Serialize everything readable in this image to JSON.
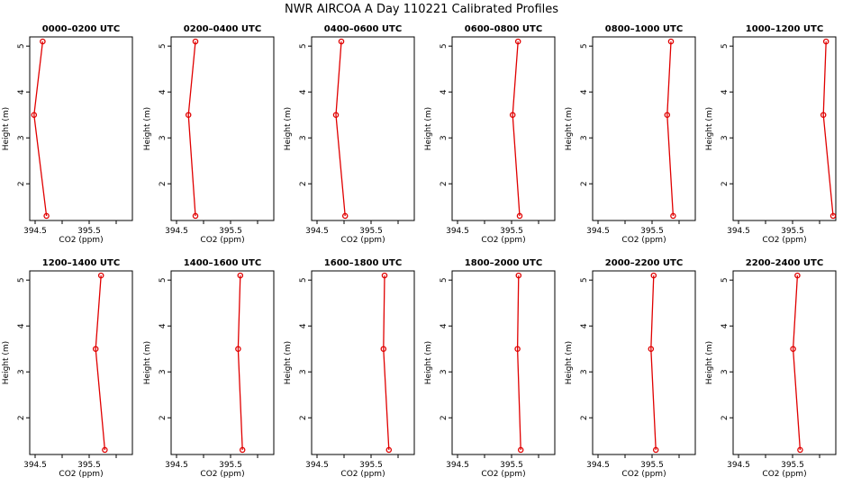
{
  "title": "NWR AIRCOA A  Day 110221  Calibrated Profiles",
  "colors": {
    "line": "#e00000",
    "axis": "#000000",
    "background": "#ffffff"
  },
  "shared_axes": {
    "xlabel": "CO2 (ppm)",
    "ylabel": "Height (m)",
    "y_ticks": [
      "2",
      "3",
      "4",
      "5"
    ],
    "y_tick_values": [
      2,
      3,
      4,
      5
    ]
  },
  "chart_data": [
    {
      "type": "line",
      "title": "0000–0200 UTC",
      "xlim": [
        394.4,
        396.3
      ],
      "x_ticks": [
        394.5,
        395.5
      ],
      "x_tick_labels": [
        "394.5",
        "395.5"
      ],
      "ylim": [
        1.2,
        5.2
      ],
      "x": [
        394.64,
        394.48,
        394.71
      ],
      "y": [
        5.1,
        3.5,
        1.3
      ]
    },
    {
      "type": "line",
      "title": "0200–0400 UTC",
      "xlim": [
        394.4,
        396.3
      ],
      "x_ticks": [
        394.5,
        395.5
      ],
      "x_tick_labels": [
        "394.5",
        "395.5"
      ],
      "ylim": [
        1.2,
        5.2
      ],
      "x": [
        394.85,
        394.72,
        394.85
      ],
      "y": [
        5.1,
        3.5,
        1.3
      ]
    },
    {
      "type": "line",
      "title": "0400–0600 UTC",
      "xlim": [
        394.4,
        396.3
      ],
      "x_ticks": [
        394.5,
        395.5
      ],
      "x_tick_labels": [
        "394.5",
        "395.5"
      ],
      "ylim": [
        1.2,
        5.2
      ],
      "x": [
        394.95,
        394.85,
        395.02
      ],
      "y": [
        5.1,
        3.5,
        1.3
      ]
    },
    {
      "type": "line",
      "title": "0600–0800 UTC",
      "xlim": [
        394.4,
        396.3
      ],
      "x_ticks": [
        394.5,
        395.5
      ],
      "x_tick_labels": [
        "394.5",
        "395.5"
      ],
      "ylim": [
        1.2,
        5.2
      ],
      "x": [
        395.62,
        395.52,
        395.65
      ],
      "y": [
        5.1,
        3.5,
        1.3
      ]
    },
    {
      "type": "line",
      "title": "0800–1000 UTC",
      "xlim": [
        394.4,
        396.3
      ],
      "x_ticks": [
        394.5,
        395.5
      ],
      "x_tick_labels": [
        "394.5",
        "395.5"
      ],
      "ylim": [
        1.2,
        5.2
      ],
      "x": [
        395.85,
        395.78,
        395.89
      ],
      "y": [
        5.1,
        3.5,
        1.3
      ]
    },
    {
      "type": "line",
      "title": "1000–1200 UTC",
      "xlim": [
        394.4,
        396.3
      ],
      "x_ticks": [
        394.5,
        395.5
      ],
      "x_tick_labels": [
        "394.5",
        "395.5"
      ],
      "ylim": [
        1.2,
        5.2
      ],
      "x": [
        396.12,
        396.07,
        396.25
      ],
      "y": [
        5.1,
        3.5,
        1.3
      ]
    },
    {
      "type": "line",
      "title": "1200–1400 UTC",
      "xlim": [
        394.4,
        396.3
      ],
      "x_ticks": [
        394.5,
        395.5
      ],
      "x_tick_labels": [
        "394.5",
        "395.5"
      ],
      "ylim": [
        1.2,
        5.2
      ],
      "x": [
        395.72,
        395.62,
        395.79
      ],
      "y": [
        5.1,
        3.5,
        1.3
      ]
    },
    {
      "type": "line",
      "title": "1400–1600 UTC",
      "xlim": [
        394.4,
        396.3
      ],
      "x_ticks": [
        394.5,
        395.5
      ],
      "x_tick_labels": [
        "394.5",
        "395.5"
      ],
      "ylim": [
        1.2,
        5.2
      ],
      "x": [
        395.68,
        395.64,
        395.72
      ],
      "y": [
        5.1,
        3.5,
        1.3
      ]
    },
    {
      "type": "line",
      "title": "1600–1800 UTC",
      "xlim": [
        394.4,
        396.3
      ],
      "x_ticks": [
        394.5,
        395.5
      ],
      "x_tick_labels": [
        "394.5",
        "395.5"
      ],
      "ylim": [
        1.2,
        5.2
      ],
      "x": [
        395.75,
        395.73,
        395.83
      ],
      "y": [
        5.1,
        3.5,
        1.3
      ]
    },
    {
      "type": "line",
      "title": "1800–2000 UTC",
      "xlim": [
        394.4,
        396.3
      ],
      "x_ticks": [
        394.5,
        395.5
      ],
      "x_tick_labels": [
        "394.5",
        "395.5"
      ],
      "ylim": [
        1.2,
        5.2
      ],
      "x": [
        395.63,
        395.61,
        395.67
      ],
      "y": [
        5.1,
        3.5,
        1.3
      ]
    },
    {
      "type": "line",
      "title": "2000–2200 UTC",
      "xlim": [
        394.4,
        396.3
      ],
      "x_ticks": [
        394.5,
        395.5
      ],
      "x_tick_labels": [
        "394.5",
        "395.5"
      ],
      "ylim": [
        1.2,
        5.2
      ],
      "x": [
        395.53,
        395.48,
        395.57
      ],
      "y": [
        5.1,
        3.5,
        1.3
      ]
    },
    {
      "type": "line",
      "title": "2200–2400 UTC",
      "xlim": [
        394.4,
        396.3
      ],
      "x_ticks": [
        394.5,
        395.5
      ],
      "x_tick_labels": [
        "394.5",
        "395.5"
      ],
      "ylim": [
        1.2,
        5.2
      ],
      "x": [
        395.59,
        395.51,
        395.64
      ],
      "y": [
        5.1,
        3.5,
        1.3
      ]
    }
  ]
}
